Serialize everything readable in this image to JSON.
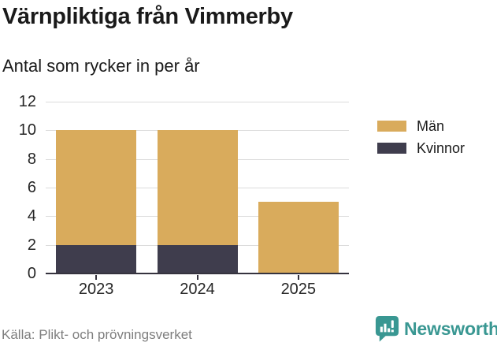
{
  "chart_data": {
    "type": "bar",
    "stacked": true,
    "title": "Värnpliktiga från Vimmerby",
    "subtitle": "Antal som rycker in per år",
    "categories": [
      "2023",
      "2024",
      "2025"
    ],
    "series": [
      {
        "name": "Män",
        "color": "#D9AB5C",
        "values": [
          8,
          8,
          5
        ]
      },
      {
        "name": "Kvinnor",
        "color": "#3F3D4D",
        "values": [
          2,
          2,
          0
        ]
      }
    ],
    "totals": [
      10,
      10,
      5
    ],
    "ylim": [
      0,
      12
    ],
    "yticks": [
      0,
      2,
      4,
      6,
      8,
      10,
      12
    ],
    "grid": true,
    "legend_position": "right"
  },
  "footer": {
    "source": "Källa: Plikt- och prövningsverket",
    "brand": "Newsworthy"
  },
  "colors": {
    "accent_gold": "#D9AB5C",
    "accent_dark": "#3F3D4D",
    "brand_teal": "#399792",
    "axis": "#35333E",
    "gridline": "#DCDCDC",
    "text_dark": "#1A1A1A",
    "text_gray": "#7E7E7E"
  }
}
